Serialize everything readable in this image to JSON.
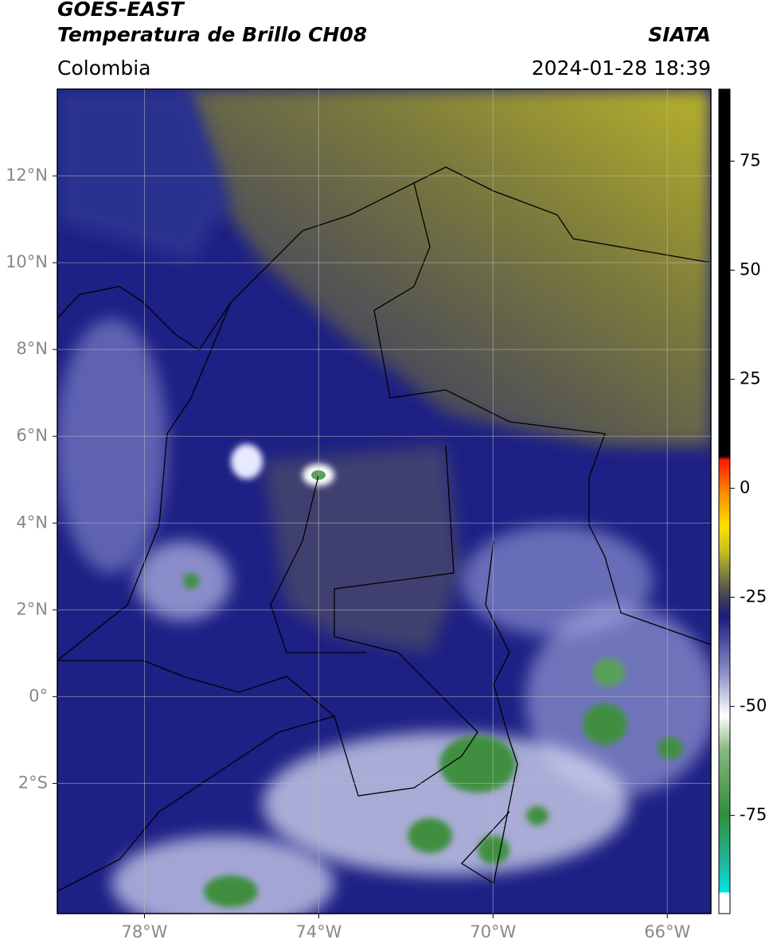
{
  "chart_data": {
    "type": "map",
    "title": "GOES-EAST",
    "subtitle": "Temperatura de Brillo CH08",
    "source": "SIATA",
    "region": "Colombia",
    "timestamp": "2024-01-28 18:39",
    "xlim": [
      -80,
      -65
    ],
    "ylim": [
      -5,
      14
    ],
    "xticks": [
      {
        "value": -78,
        "label": "78°W"
      },
      {
        "value": -74,
        "label": "74°W"
      },
      {
        "value": -70,
        "label": "70°W"
      },
      {
        "value": -66,
        "label": "66°W"
      }
    ],
    "yticks": [
      {
        "value": 12,
        "label": "12°N"
      },
      {
        "value": 10,
        "label": "10°N"
      },
      {
        "value": 8,
        "label": "8°N"
      },
      {
        "value": 6,
        "label": "6°N"
      },
      {
        "value": 4,
        "label": "4°N"
      },
      {
        "value": 2,
        "label": "2°N"
      },
      {
        "value": 0,
        "label": "0°"
      },
      {
        "value": -2,
        "label": "2°S"
      }
    ],
    "grid": true,
    "colorbar": {
      "lim": [
        -97.5,
        91.5
      ],
      "ticks": [
        75,
        50,
        25,
        0,
        -25,
        -50,
        -75
      ]
    }
  }
}
